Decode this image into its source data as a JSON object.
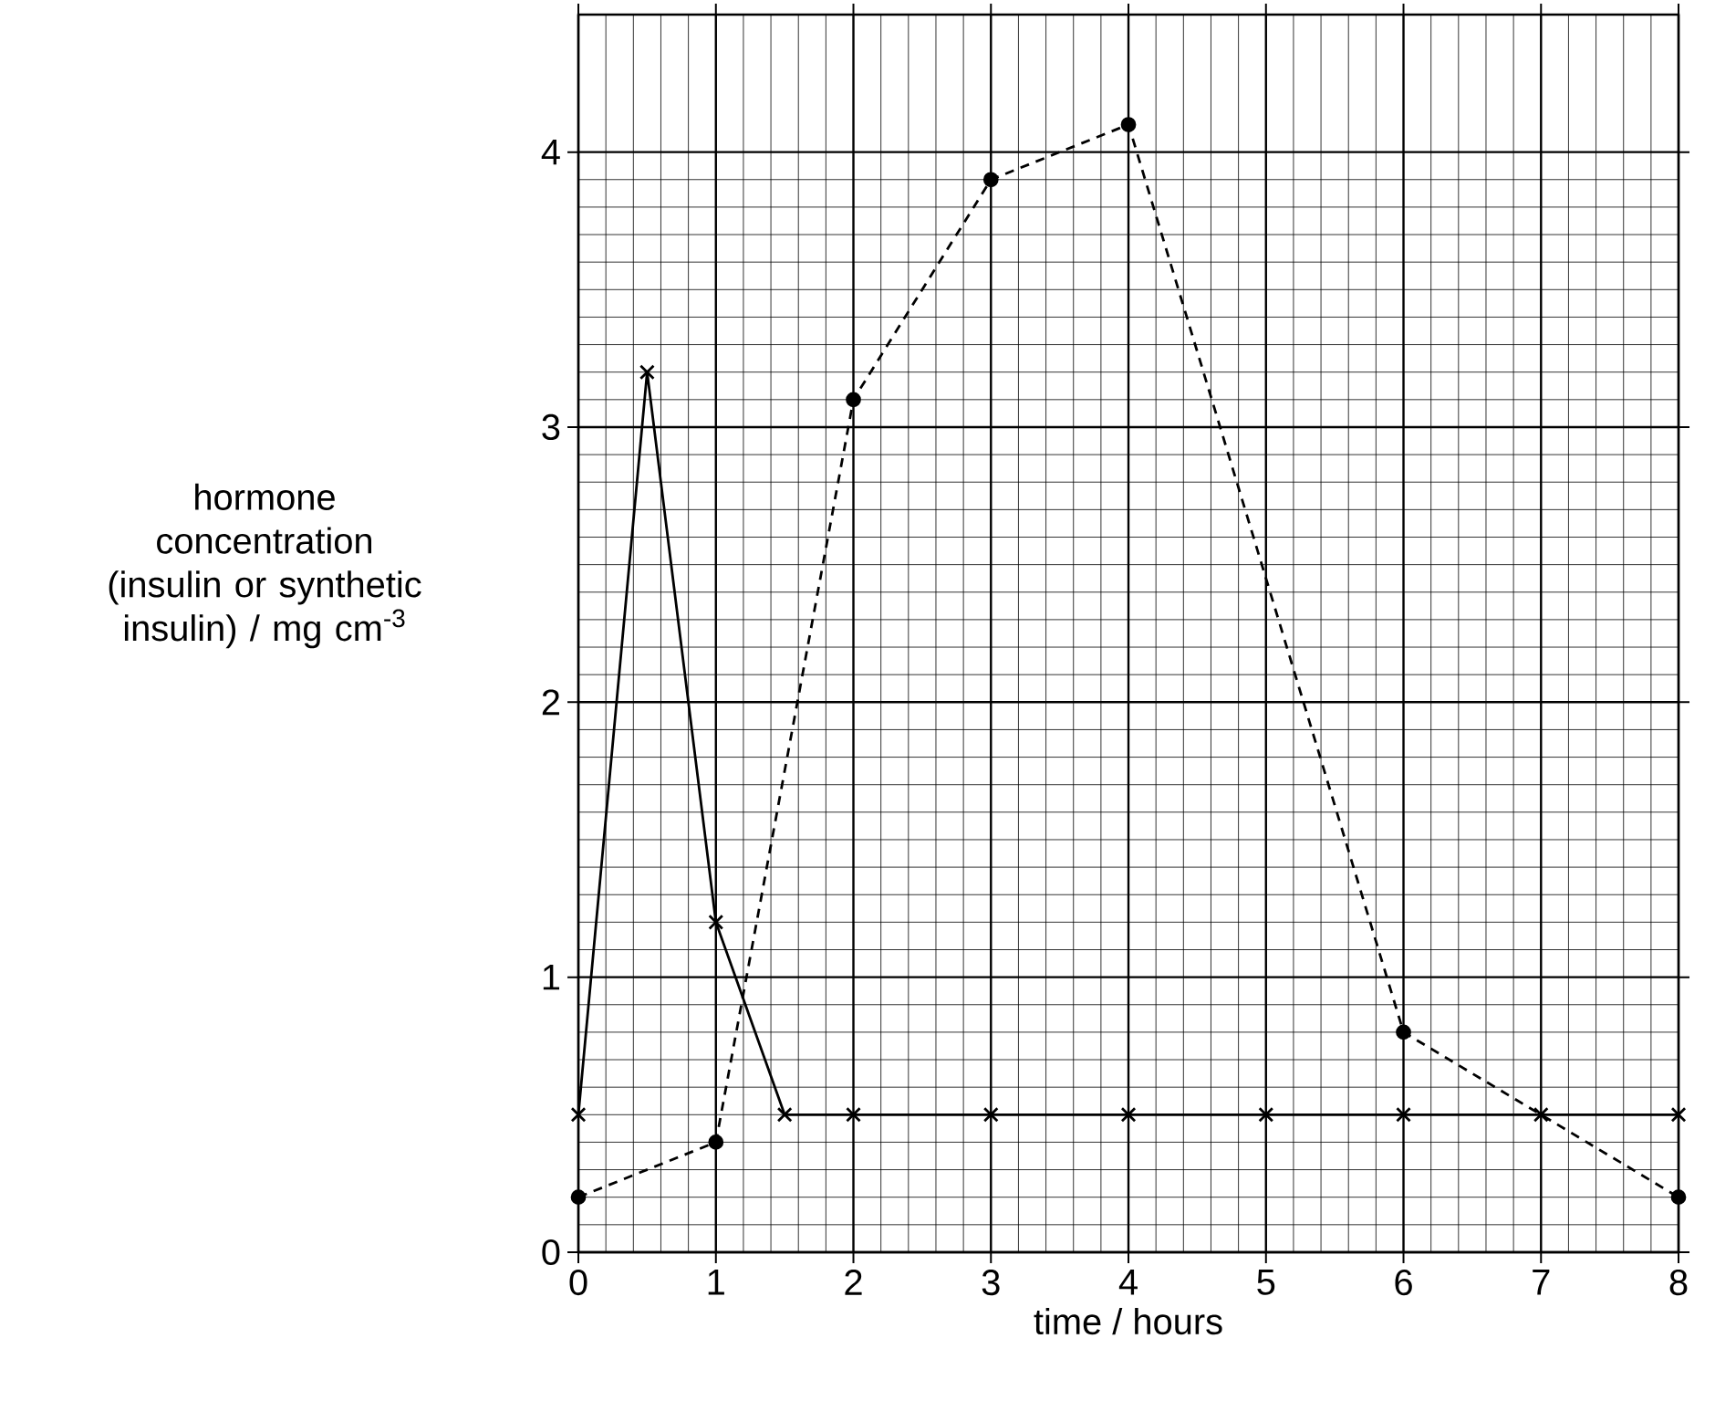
{
  "chart_data": {
    "type": "line",
    "xlabel": "time / hours",
    "ylabel": "hormone concentration (insulin or synthetic insulin) / mg cm$^{-3}$",
    "series": [
      {
        "color": "#000000",
        "marker": "cross",
        "line_style": "solid",
        "x": [
          0,
          0.5,
          1,
          1.5,
          2,
          3,
          4,
          5,
          6,
          7,
          8
        ],
        "values": [
          0.5,
          3.2,
          1.2,
          0.5,
          0.5,
          0.5,
          0.5,
          0.5,
          0.5,
          0.5,
          0.5
        ]
      },
      {
        "color": "#000000",
        "marker": "circle",
        "line_style": "dashed",
        "x": [
          0,
          1,
          2,
          3,
          4,
          6,
          8
        ],
        "values": [
          0.2,
          0.4,
          3.1,
          3.9,
          4.1,
          0.8,
          0.2
        ]
      }
    ],
    "xlim": [
      0,
      8
    ],
    "xticks": [
      0,
      1,
      2,
      3,
      4,
      5,
      6,
      7,
      8
    ],
    "ylim": [
      0,
      4.5
    ],
    "yticks": [
      0,
      1,
      2,
      3,
      4
    ],
    "grid": true
  }
}
